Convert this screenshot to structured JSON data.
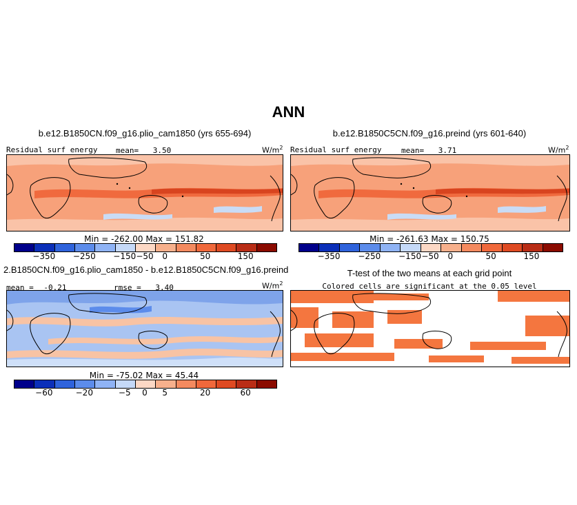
{
  "figure_title": "ANN",
  "units_main": "W/m",
  "units_sup": "2",
  "colors": {
    "row1": [
      "#00008b",
      "#0b2fb9",
      "#2f63dc",
      "#5c8ceb",
      "#8fb3f5",
      "#c5d9f8",
      "#fcd8c5",
      "#f7b08c",
      "#f48a5f",
      "#f0683b",
      "#df4a22",
      "#b92d16",
      "#8b0b00"
    ],
    "row2": [
      "#00008b",
      "#0b2fb9",
      "#2f63dc",
      "#5c8ceb",
      "#8fb3f5",
      "#c5d9f8",
      "#fcd8c5",
      "#f7b08c",
      "#f48a5f",
      "#f0683b",
      "#df4a22",
      "#b92d16",
      "#8b0b00"
    ],
    "ttest": "#f4763f"
  },
  "chart_data": [
    {
      "type": "heatmap",
      "panel": "top-left",
      "title": "b.e12.B1850CN.f09_g16.plio_cam1850 (yrs 655-694)",
      "variable": "Residual surf energy",
      "mean_label": "mean=",
      "mean": "3.50",
      "min_label": "Min =",
      "min": "-262.00",
      "max_label": "Max =",
      "max": "151.82",
      "colorbar_ticks": [
        "-350",
        "-250",
        "-150",
        "-50",
        "0",
        "50",
        "150"
      ]
    },
    {
      "type": "heatmap",
      "panel": "top-right",
      "title": "b.e12.B1850C5CN.f09_g16.preind (yrs 601-640)",
      "variable": "Residual surf energy",
      "mean_label": "mean=",
      "mean": "3.71",
      "min_label": "Min =",
      "min": "-261.63",
      "max_label": "Max =",
      "max": "150.75",
      "colorbar_ticks": [
        "-350",
        "-250",
        "-150",
        "-50",
        "0",
        "50",
        "150"
      ]
    },
    {
      "type": "heatmap",
      "panel": "bottom-left",
      "title": "2.B1850CN.f09_g16.plio_cam1850 - b.e12.B1850C5CN.f09_g16.preind",
      "mean_label": "mean =",
      "mean": "-0.21",
      "rmse_label": "rmse =",
      "rmse": "3.40",
      "min_label": "Min =",
      "min": "-75.02",
      "max_label": "Max =",
      "max": "45.44",
      "colorbar_ticks": [
        "-60",
        "-20",
        "-5",
        "0",
        "5",
        "20",
        "60"
      ]
    },
    {
      "type": "heatmap",
      "panel": "bottom-right",
      "title": "T-test of the two means at each grid point",
      "subtitle": "Colored cells are significant at the 0.05 level"
    }
  ]
}
